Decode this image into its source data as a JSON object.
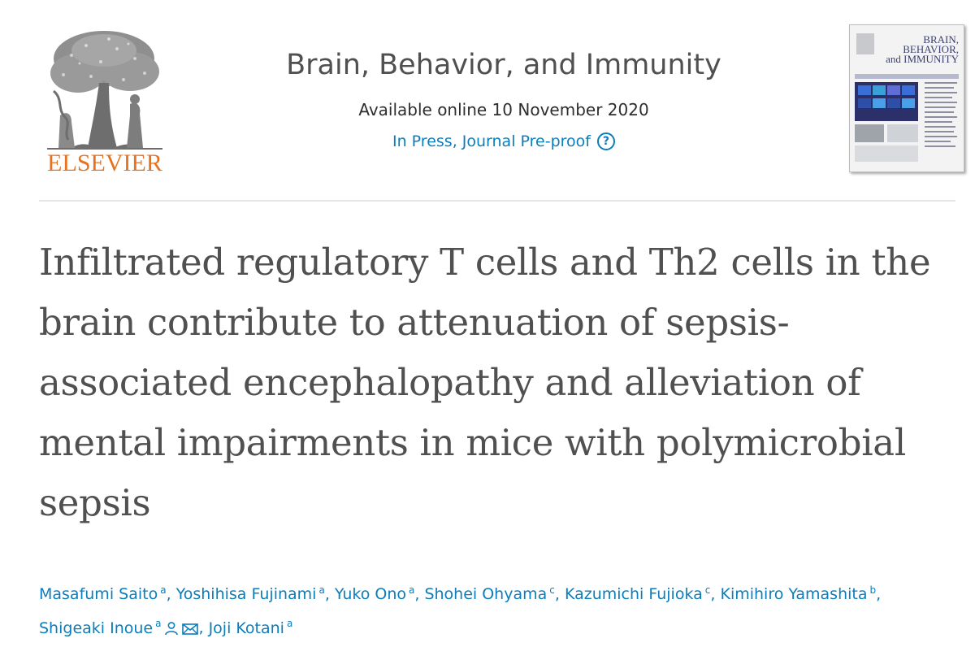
{
  "publisher": {
    "name": "ELSEVIER",
    "logo_icon": "elsevier-tree-logo",
    "brand_color": "#e9711c"
  },
  "journal": {
    "title": "Brain, Behavior, and Immunity",
    "available": "Available online 10 November 2020",
    "status": "In Press, Journal Pre-proof",
    "help_icon": "question-circle-icon",
    "help_glyph": "?",
    "cover_title_lines": [
      "BRAIN,",
      "BEHAVIOR,",
      "and IMMUNITY"
    ]
  },
  "article": {
    "title": "Infiltrated regulatory T cells and Th2 cells in the brain contribute to attenuation of sepsis-associated encephalopathy and alleviation of mental impairments in mice with polymicrobial sepsis"
  },
  "authors": [
    {
      "name": "Masafumi Saito",
      "aff": "a"
    },
    {
      "name": "Yoshihisa Fujinami",
      "aff": "a"
    },
    {
      "name": "Yuko Ono",
      "aff": "a"
    },
    {
      "name": "Shohei Ohyama",
      "aff": "c"
    },
    {
      "name": "Kazumichi Fujioka",
      "aff": "c"
    },
    {
      "name": "Kimihiro Yamashita",
      "aff": "b"
    },
    {
      "name": "Shigeaki Inoue",
      "aff": "a",
      "icons": [
        "person-icon",
        "mail-icon"
      ]
    },
    {
      "name": "Joji Kotani",
      "aff": "a"
    }
  ],
  "colors": {
    "link": "#0c7dbb",
    "text": "#505050",
    "divider": "#e5e5e5"
  }
}
